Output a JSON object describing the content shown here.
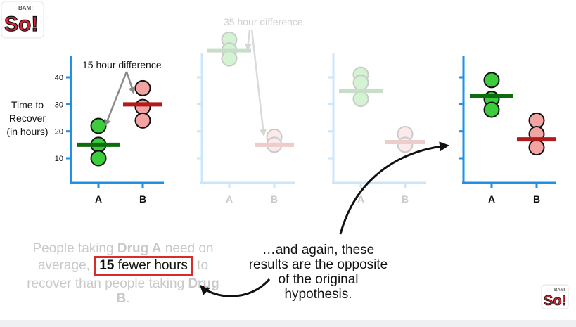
{
  "y_axis_label": [
    "Time to",
    "Recover",
    "(in hours)"
  ],
  "y_ticks": [
    10,
    20,
    30,
    40
  ],
  "panels": [
    {
      "faded": false,
      "categories": [
        "A",
        "B"
      ],
      "a_points": [
        22,
        15,
        10
      ],
      "b_points": [
        36,
        29,
        24
      ],
      "a_mean": 15,
      "b_mean": 30,
      "show_tick_labels": true
    },
    {
      "faded": true,
      "categories": [
        "A",
        "B"
      ],
      "a_points": [
        54,
        50,
        47
      ],
      "b_points": [
        18,
        15
      ],
      "a_mean": 50,
      "b_mean": 15,
      "show_tick_labels": false
    },
    {
      "faded": true,
      "categories": [
        "A",
        "B"
      ],
      "a_points": [
        41,
        38,
        32
      ],
      "b_points": [
        19,
        15
      ],
      "a_mean": 35,
      "b_mean": 16,
      "show_tick_labels": false
    },
    {
      "faded": false,
      "categories": [
        "A",
        "B"
      ],
      "a_points": [
        39,
        32,
        28
      ],
      "b_points": [
        24,
        19,
        14
      ],
      "a_mean": 33,
      "b_mean": 17,
      "show_tick_labels": false
    }
  ],
  "annotations": {
    "diff_15": "15 hour difference",
    "diff_35": "35 hour difference"
  },
  "summary": {
    "part1": "People taking ",
    "drug_a": "Drug A",
    "part2": " need on average,",
    "boxed_number": "15",
    "boxed_text": " fewer hours",
    "part3": "to recover than people taking ",
    "drug_b": "Drug B",
    "part4": "."
  },
  "caption": {
    "line1": "…and again, these",
    "line2": "results are the opposite",
    "line3": "of the original",
    "line4": "hypothesis."
  },
  "logo_text": "So!",
  "logo_sub": "BAM!",
  "colors": {
    "axis": "#1e90e6",
    "green_fill": "#3ccc3c",
    "green_line": "#0e6b0e",
    "red_fill": "#f4a3a3",
    "red_line": "#b21b1b",
    "box_border": "#d62c2c"
  }
}
